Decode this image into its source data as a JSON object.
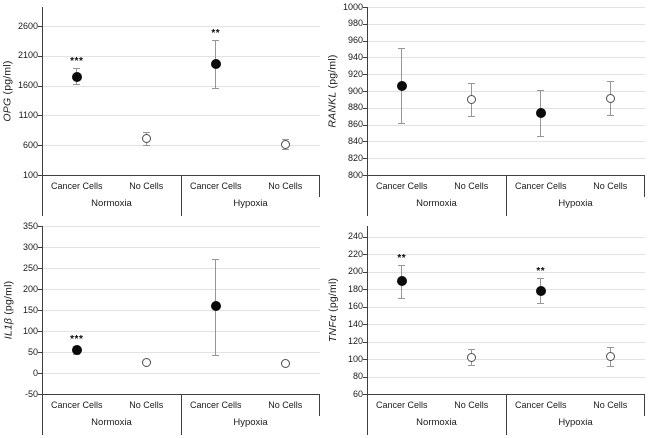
{
  "figure": {
    "background": "#ffffff"
  },
  "colors": {
    "grid": "#e2e2e2",
    "axis": "#3f3f3f",
    "error_bar": "#969696",
    "marker_filled": "#0a0a0a",
    "marker_open_stroke": "#4d4d4d",
    "text": "#1a1a1a"
  },
  "chart_data": [
    {
      "id": "opg",
      "type": "scatter",
      "ylabel_italic": "OPG",
      "ylabel_units": " (pg/ml)",
      "ymin": 100,
      "ymax": 2920,
      "yticks": [
        100,
        600,
        1100,
        1600,
        2100,
        2600
      ],
      "categories": [
        "Cancer Cells",
        "No Cells",
        "Cancer Cells",
        "No Cells"
      ],
      "groups": [
        "Normoxia",
        "Hypoxia"
      ],
      "grid": true,
      "points": [
        {
          "category": "Cancer Cells",
          "group": "Normoxia",
          "marker": "filled",
          "y": 1750,
          "err_lo": 1630,
          "err_hi": 1890,
          "sig": "***"
        },
        {
          "category": "No Cells",
          "group": "Normoxia",
          "marker": "open",
          "y": 720,
          "err_lo": 610,
          "err_hi": 820,
          "sig": ""
        },
        {
          "category": "Cancer Cells",
          "group": "Hypoxia",
          "marker": "filled",
          "y": 1960,
          "err_lo": 1565,
          "err_hi": 2370,
          "sig": "**"
        },
        {
          "category": "No Cells",
          "group": "Hypoxia",
          "marker": "open",
          "y": 620,
          "err_lo": 530,
          "err_hi": 710,
          "sig": ""
        }
      ]
    },
    {
      "id": "rankl",
      "type": "scatter",
      "ylabel_italic": "RANKL",
      "ylabel_units": " (pg/ml)",
      "ymin": 800,
      "ymax": 1000,
      "yticks": [
        800,
        820,
        840,
        860,
        880,
        900,
        920,
        940,
        960,
        980,
        1000
      ],
      "categories": [
        "Cancer Cells",
        "No Cells",
        "Cancer Cells",
        "No Cells"
      ],
      "groups": [
        "Normoxia",
        "Hypoxia"
      ],
      "grid": true,
      "points": [
        {
          "category": "Cancer Cells",
          "group": "Normoxia",
          "marker": "filled",
          "y": 906,
          "err_lo": 862,
          "err_hi": 951,
          "sig": ""
        },
        {
          "category": "No Cells",
          "group": "Normoxia",
          "marker": "open",
          "y": 890,
          "err_lo": 870,
          "err_hi": 909,
          "sig": ""
        },
        {
          "category": "Cancer Cells",
          "group": "Hypoxia",
          "marker": "filled",
          "y": 874,
          "err_lo": 847,
          "err_hi": 901,
          "sig": ""
        },
        {
          "category": "No Cells",
          "group": "Hypoxia",
          "marker": "open",
          "y": 891,
          "err_lo": 871,
          "err_hi": 912,
          "sig": ""
        }
      ]
    },
    {
      "id": "il1b",
      "type": "scatter",
      "ylabel_italic": "IL1β",
      "ylabel_units": " (pg/ml)",
      "ymin": -50,
      "ymax": 350,
      "yticks": [
        -50,
        0,
        50,
        100,
        150,
        200,
        250,
        300,
        350
      ],
      "categories": [
        "Cancer Cells",
        "No Cells",
        "Cancer Cells",
        "No Cells"
      ],
      "groups": [
        "Normoxia",
        "Hypoxia"
      ],
      "grid": true,
      "points": [
        {
          "category": "Cancer Cells",
          "group": "Normoxia",
          "marker": "filled",
          "y": 55,
          "err_lo": 45,
          "err_hi": 65,
          "sig": "***"
        },
        {
          "category": "No Cells",
          "group": "Normoxia",
          "marker": "open",
          "y": 24,
          "err_lo": 24,
          "err_hi": 24,
          "sig": ""
        },
        {
          "category": "Cancer Cells",
          "group": "Hypoxia",
          "marker": "filled",
          "y": 160,
          "err_lo": 43,
          "err_hi": 272,
          "sig": ""
        },
        {
          "category": "No Cells",
          "group": "Hypoxia",
          "marker": "open",
          "y": 23,
          "err_lo": 23,
          "err_hi": 23,
          "sig": ""
        }
      ]
    },
    {
      "id": "tnfa",
      "type": "scatter",
      "ylabel_italic": "TNFα",
      "ylabel_units": " (pg/ml)",
      "ymin": 60,
      "ymax": 252,
      "yticks": [
        60,
        80,
        100,
        120,
        140,
        160,
        180,
        200,
        220,
        240
      ],
      "categories": [
        "Cancer Cells",
        "No Cells",
        "Cancer Cells",
        "No Cells"
      ],
      "groups": [
        "Normoxia",
        "Hypoxia"
      ],
      "grid": true,
      "points": [
        {
          "category": "Cancer Cells",
          "group": "Normoxia",
          "marker": "filled",
          "y": 189,
          "err_lo": 170,
          "err_hi": 207,
          "sig": "**"
        },
        {
          "category": "No Cells",
          "group": "Normoxia",
          "marker": "open",
          "y": 102,
          "err_lo": 93,
          "err_hi": 112,
          "sig": ""
        },
        {
          "category": "Cancer Cells",
          "group": "Hypoxia",
          "marker": "filled",
          "y": 178,
          "err_lo": 164,
          "err_hi": 193,
          "sig": "**"
        },
        {
          "category": "No Cells",
          "group": "Hypoxia",
          "marker": "open",
          "y": 103,
          "err_lo": 92,
          "err_hi": 114,
          "sig": ""
        }
      ]
    }
  ]
}
